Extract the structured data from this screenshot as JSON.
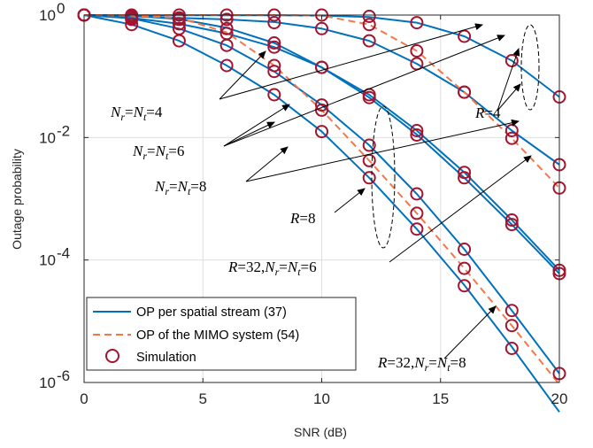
{
  "chart_data": {
    "type": "line",
    "title": "",
    "xlabel": "SNR (dB)",
    "ylabel": "Outage probability",
    "xlim": [
      0,
      20
    ],
    "ylim": [
      1e-06,
      1
    ],
    "yscale": "log",
    "x_ticks": [
      "0",
      "5",
      "10",
      "15",
      "20"
    ],
    "y_ticks": [
      {
        "value": 1,
        "base": "10",
        "exp": "0"
      },
      {
        "value": 0.01,
        "base": "10",
        "exp": "-2"
      },
      {
        "value": 0.0001,
        "base": "10",
        "exp": "-4"
      },
      {
        "value": 1e-06,
        "base": "10",
        "exp": "-6"
      }
    ],
    "grid": true,
    "legend_position": "bottom-left",
    "legend": [
      {
        "label": "OP per spatial stream (37)",
        "style": "solid",
        "color": "#0072bd"
      },
      {
        "label": "OP of the MIMO system (54)",
        "style": "dashed",
        "color": "#f2784b"
      },
      {
        "label": "Simulation",
        "style": "circle",
        "color": "#a2142f"
      }
    ],
    "x": [
      0,
      2,
      4,
      6,
      8,
      10,
      12,
      14,
      16,
      18,
      20
    ],
    "series": [
      {
        "style": "solid",
        "values": [
          1,
          0.995,
          0.99,
          0.99,
          0.99,
          0.98,
          0.93,
          0.75,
          0.45,
          0.18,
          0.046
        ]
      },
      {
        "style": "solid",
        "values": [
          1,
          0.96,
          0.9,
          0.85,
          0.77,
          0.6,
          0.38,
          0.16,
          0.055,
          0.013,
          0.0036
        ]
      },
      {
        "style": "solid",
        "values": [
          1,
          0.9,
          0.72,
          0.5,
          0.3,
          0.14,
          0.05,
          0.013,
          0.0027,
          0.00045,
          6.8e-05
        ]
      },
      {
        "style": "solid",
        "values": [
          1,
          0.97,
          0.86,
          0.62,
          0.35,
          0.14,
          0.045,
          0.0112,
          0.0022,
          0.00038,
          6e-05
        ]
      },
      {
        "style": "solid",
        "values": [
          1,
          0.88,
          0.6,
          0.32,
          0.12,
          0.034,
          0.0075,
          0.0012,
          0.00015,
          1.5e-05,
          1.4e-06
        ]
      },
      {
        "style": "solid",
        "values": [
          1,
          0.7,
          0.38,
          0.15,
          0.05,
          0.0125,
          0.0022,
          0.00032,
          3.9e-05,
          3.8e-06,
          3.3e-07
        ]
      },
      {
        "style": "dashed",
        "values": [
          1,
          1,
          1,
          1,
          1,
          0.98,
          0.7,
          0.26,
          0.055,
          0.0097,
          0.0015
        ]
      },
      {
        "style": "dashed",
        "values": [
          1,
          0.98,
          0.9,
          0.52,
          0.15,
          0.028,
          0.0042,
          0.00058,
          7.3e-05,
          8.5e-06,
          9.3e-07
        ]
      }
    ],
    "simulation": [
      [
        [
          0,
          1
        ],
        [
          2,
          1
        ],
        [
          4,
          1
        ],
        [
          6,
          1
        ],
        [
          8,
          1
        ],
        [
          10,
          1
        ],
        [
          12,
          0.95
        ],
        [
          14,
          0.75
        ],
        [
          16,
          0.45
        ],
        [
          18,
          0.18
        ],
        [
          20,
          0.046
        ]
      ],
      [
        [
          0,
          1
        ],
        [
          2,
          0.95
        ],
        [
          4,
          0.9
        ],
        [
          6,
          0.85
        ],
        [
          8,
          0.75
        ],
        [
          10,
          0.6
        ],
        [
          12,
          0.38
        ],
        [
          14,
          0.16
        ],
        [
          16,
          0.055
        ],
        [
          18,
          0.013
        ],
        [
          20,
          0.0036
        ]
      ],
      [
        [
          0,
          1
        ],
        [
          2,
          0.9
        ],
        [
          4,
          0.72
        ],
        [
          6,
          0.5
        ],
        [
          8,
          0.3
        ],
        [
          10,
          0.14
        ],
        [
          12,
          0.05
        ],
        [
          14,
          0.013
        ],
        [
          16,
          0.0027
        ],
        [
          18,
          0.00045
        ],
        [
          20,
          6.8e-05
        ]
      ],
      [
        [
          0,
          1
        ],
        [
          2,
          0.95
        ],
        [
          4,
          0.85
        ],
        [
          6,
          0.6
        ],
        [
          8,
          0.35
        ],
        [
          10,
          0.14
        ],
        [
          12,
          0.045
        ],
        [
          14,
          0.011
        ],
        [
          16,
          0.0022
        ],
        [
          18,
          0.00038
        ],
        [
          20,
          6e-05
        ]
      ],
      [
        [
          0,
          1
        ],
        [
          2,
          0.85
        ],
        [
          4,
          0.6
        ],
        [
          6,
          0.32
        ],
        [
          8,
          0.12
        ],
        [
          10,
          0.034
        ],
        [
          12,
          0.0075
        ],
        [
          14,
          0.0012
        ],
        [
          16,
          0.00015
        ],
        [
          18,
          1.5e-05
        ],
        [
          20,
          1.4e-06
        ]
      ],
      [
        [
          0,
          1
        ],
        [
          2,
          0.7
        ],
        [
          4,
          0.38
        ],
        [
          6,
          0.15
        ],
        [
          8,
          0.05
        ],
        [
          10,
          0.0125
        ],
        [
          12,
          0.0022
        ],
        [
          14,
          0.00032
        ],
        [
          16,
          3.8e-05
        ],
        [
          18,
          3.6e-06
        ]
      ],
      [
        [
          0,
          1
        ],
        [
          12,
          0.7
        ],
        [
          14,
          0.26
        ],
        [
          16,
          0.055
        ],
        [
          18,
          0.0097
        ],
        [
          20,
          0.0015
        ]
      ],
      [
        [
          0,
          1
        ],
        [
          8,
          0.15
        ],
        [
          10,
          0.028
        ],
        [
          12,
          0.0042
        ],
        [
          14,
          0.00058
        ],
        [
          16,
          7.3e-05
        ],
        [
          18,
          8.5e-06
        ]
      ]
    ],
    "annotations": {
      "nr4": {
        "N": "N",
        "r": "r",
        "eq": "=",
        "t": "t",
        "val": "=4"
      },
      "nr6": {
        "N": "N",
        "r": "r",
        "eq": "=",
        "t": "t",
        "val": "=6"
      },
      "nr8": {
        "N": "N",
        "r": "r",
        "eq": "=",
        "t": "t",
        "val": "=8"
      },
      "r4": {
        "R": "R",
        "val": "=4"
      },
      "r8": {
        "R": "R",
        "val": "=8"
      },
      "r32_6": {
        "R": "R",
        "mid": "=32,",
        "N": "N",
        "r": "r",
        "eq": "=",
        "t": "t",
        "val": "=6"
      },
      "r32_8": {
        "R": "R",
        "mid": "=32,",
        "N": "N",
        "r": "r",
        "eq": "=",
        "t": "t",
        "val": "=8"
      }
    },
    "colors": {
      "solid": "#0072bd",
      "dashed": "#f2784b",
      "marker": "#a2142f",
      "grid": "#dfdfdf",
      "axis": "#262626"
    }
  }
}
